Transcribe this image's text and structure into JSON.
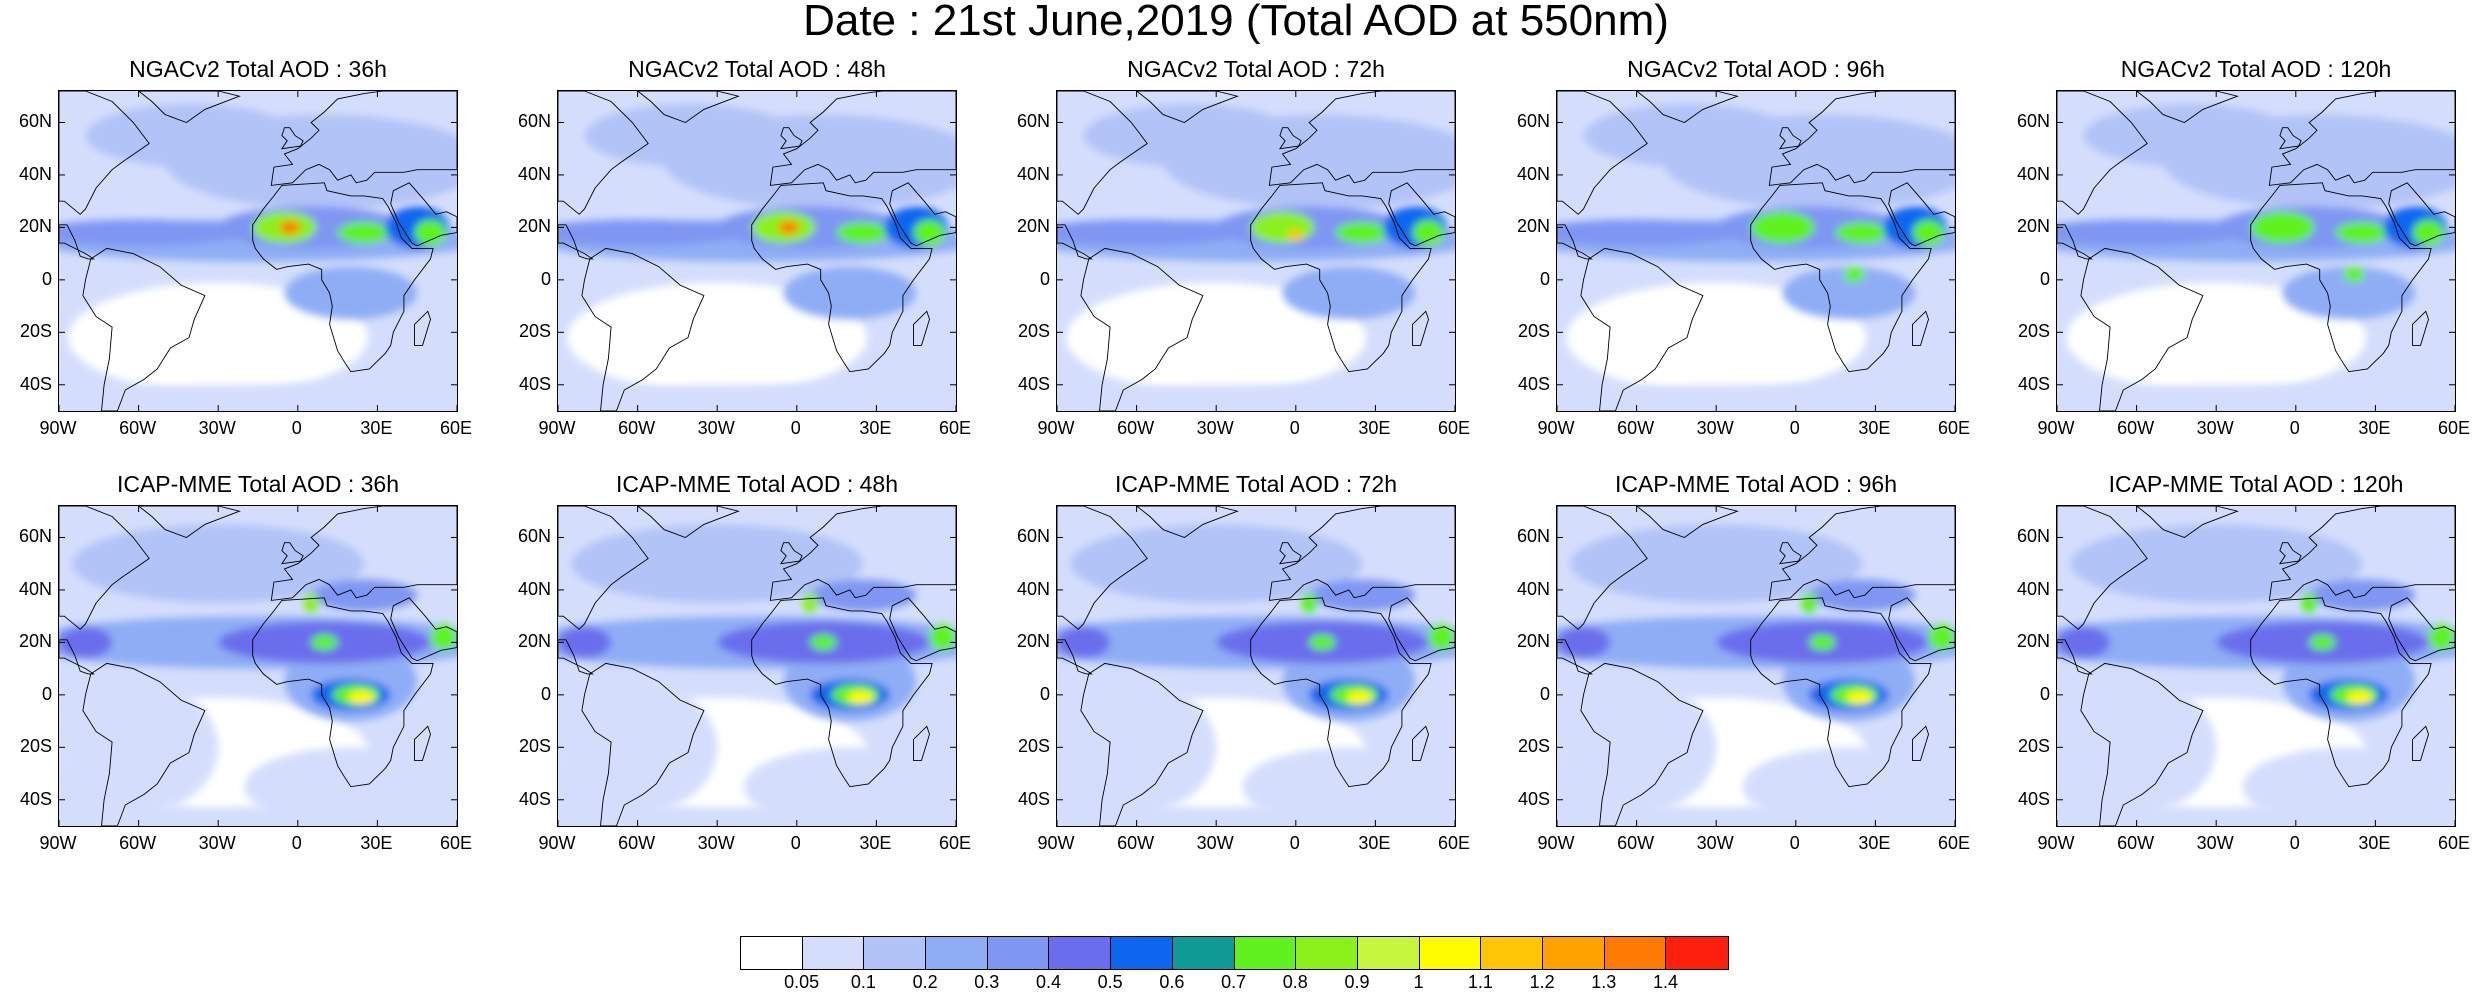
{
  "title": "Date : 21st June,2019 (Total AOD at 550nm)",
  "lat_ticks": [
    "60N",
    "40N",
    "20N",
    "0",
    "20S",
    "40S"
  ],
  "lat_values": [
    60,
    40,
    20,
    0,
    -20,
    -40
  ],
  "lon_ticks": [
    "90W",
    "60W",
    "30W",
    "0",
    "30E",
    "60E"
  ],
  "lon_values": [
    -90,
    -60,
    -30,
    0,
    30,
    60
  ],
  "map_extent": {
    "lon": [
      -90,
      60
    ],
    "lat": [
      -50,
      72
    ]
  },
  "panels": [
    {
      "title": "NGACv2 Total AOD : 36h",
      "model": "NGACv2",
      "lead_hours": 36
    },
    {
      "title": "NGACv2 Total AOD : 48h",
      "model": "NGACv2",
      "lead_hours": 48
    },
    {
      "title": "NGACv2 Total AOD : 72h",
      "model": "NGACv2",
      "lead_hours": 72
    },
    {
      "title": "NGACv2 Total AOD : 96h",
      "model": "NGACv2",
      "lead_hours": 96
    },
    {
      "title": "NGACv2 Total AOD : 120h",
      "model": "NGACv2",
      "lead_hours": 120
    },
    {
      "title": "ICAP-MME Total AOD : 36h",
      "model": "ICAP-MME",
      "lead_hours": 36
    },
    {
      "title": "ICAP-MME Total AOD : 48h",
      "model": "ICAP-MME",
      "lead_hours": 48
    },
    {
      "title": "ICAP-MME Total AOD : 72h",
      "model": "ICAP-MME",
      "lead_hours": 72
    },
    {
      "title": "ICAP-MME Total AOD : 96h",
      "model": "ICAP-MME",
      "lead_hours": 96
    },
    {
      "title": "ICAP-MME Total AOD : 120h",
      "model": "ICAP-MME",
      "lead_hours": 120
    }
  ],
  "colorbar": {
    "labels": [
      "0.05",
      "0.1",
      "0.2",
      "0.3",
      "0.4",
      "0.5",
      "0.6",
      "0.7",
      "0.8",
      "0.9",
      "1",
      "1.1",
      "1.2",
      "1.3",
      "1.4"
    ],
    "colors": [
      "#ffffff",
      "#d4defc",
      "#b2c3f7",
      "#8fadf5",
      "#7f96f2",
      "#6a6eec",
      "#0d66f0",
      "#109a95",
      "#5ff21e",
      "#8cf01b",
      "#c5f53c",
      "#fffc00",
      "#ffc406",
      "#ffa200",
      "#ff7a00",
      "#ff1f0d"
    ]
  }
}
